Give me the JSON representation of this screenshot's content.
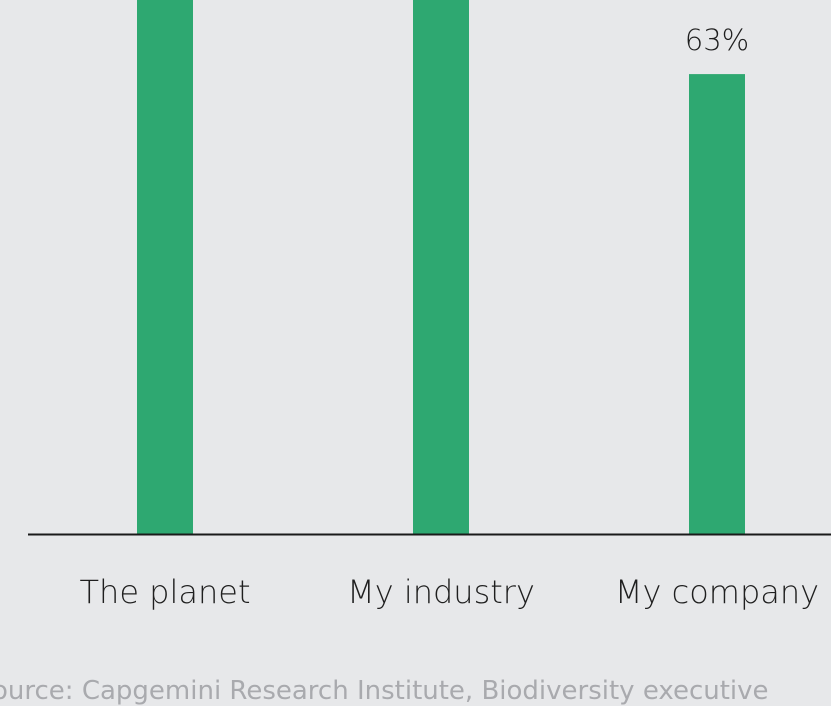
{
  "chart_data": {
    "type": "bar",
    "categories": [
      "The planet",
      "My industry",
      "My company"
    ],
    "values": [
      null,
      null,
      63
    ],
    "data_labels": [
      "",
      "",
      "63%"
    ],
    "ylim": [
      0,
      100
    ],
    "ylabel": "",
    "xlabel": "",
    "grid": false,
    "bar_color": "#2ea871",
    "note": "Bars for The planet and My industry extend above the visible area."
  },
  "source": {
    "text": "ource: Capgemini Research Institute, Biodiversity executive"
  }
}
